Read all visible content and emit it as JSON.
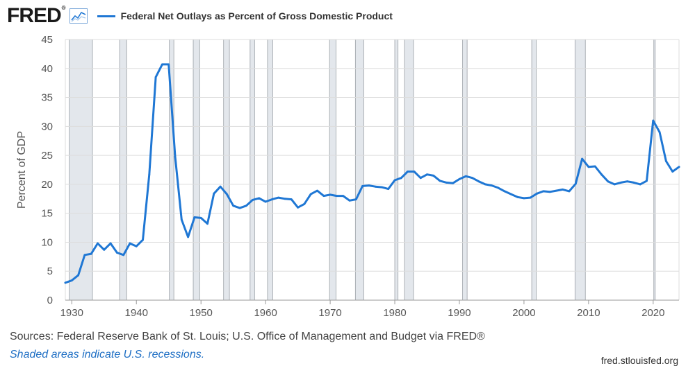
{
  "header": {
    "logo_text": "FRED",
    "logo_mark": "®",
    "icon": "line-chart-icon",
    "legend_label": "Federal Net Outlays as Percent of Gross Domestic Product"
  },
  "colors": {
    "series": "#1f77d4",
    "recession": "#e3e7ec",
    "grid": "#dddddd",
    "axis_text": "#555555"
  },
  "chart_data": {
    "type": "line",
    "title": "Federal Net Outlays as Percent of Gross Domestic Product",
    "xlabel": "",
    "ylabel": "Percent of GDP",
    "xlim": [
      1929,
      2024
    ],
    "ylim": [
      0,
      45
    ],
    "x_ticks": [
      1930,
      1940,
      1950,
      1960,
      1970,
      1980,
      1990,
      2000,
      2010,
      2020
    ],
    "y_ticks": [
      0,
      5,
      10,
      15,
      20,
      25,
      30,
      35,
      40,
      45
    ],
    "recessions": [
      [
        1929.6,
        1933.2
      ],
      [
        1937.4,
        1938.5
      ],
      [
        1945.1,
        1945.8
      ],
      [
        1948.8,
        1949.8
      ],
      [
        1953.5,
        1954.4
      ],
      [
        1957.6,
        1958.3
      ],
      [
        1960.3,
        1961.1
      ],
      [
        1969.9,
        1970.9
      ],
      [
        1973.9,
        1975.2
      ],
      [
        1980.0,
        1980.5
      ],
      [
        1981.5,
        1982.9
      ],
      [
        1990.5,
        1991.2
      ],
      [
        2001.2,
        2001.9
      ],
      [
        2007.9,
        2009.5
      ],
      [
        2020.1,
        2020.3
      ]
    ],
    "series": [
      {
        "name": "Federal Net Outlays as Percent of Gross Domestic Product",
        "x": [
          1929,
          1930,
          1931,
          1932,
          1933,
          1934,
          1935,
          1936,
          1937,
          1938,
          1939,
          1940,
          1941,
          1942,
          1943,
          1944,
          1945,
          1946,
          1947,
          1948,
          1949,
          1950,
          1951,
          1952,
          1953,
          1954,
          1955,
          1956,
          1957,
          1958,
          1959,
          1960,
          1961,
          1962,
          1963,
          1964,
          1965,
          1966,
          1967,
          1968,
          1969,
          1970,
          1971,
          1972,
          1973,
          1974,
          1975,
          1976,
          1977,
          1978,
          1979,
          1980,
          1981,
          1982,
          1983,
          1984,
          1985,
          1986,
          1987,
          1988,
          1989,
          1990,
          1991,
          1992,
          1993,
          1994,
          1995,
          1996,
          1997,
          1998,
          1999,
          2000,
          2001,
          2002,
          2003,
          2004,
          2005,
          2006,
          2007,
          2008,
          2009,
          2010,
          2011,
          2012,
          2013,
          2014,
          2015,
          2016,
          2017,
          2018,
          2019,
          2020,
          2021,
          2022,
          2023,
          2024
        ],
        "values": [
          3.0,
          3.4,
          4.3,
          7.8,
          8.0,
          9.8,
          8.7,
          9.8,
          8.2,
          7.8,
          9.8,
          9.3,
          10.4,
          21.7,
          38.5,
          40.7,
          40.7,
          24.8,
          13.9,
          10.9,
          14.3,
          14.2,
          13.2,
          18.4,
          19.6,
          18.3,
          16.3,
          15.9,
          16.3,
          17.3,
          17.6,
          17.0,
          17.4,
          17.7,
          17.5,
          17.4,
          16.0,
          16.6,
          18.3,
          18.9,
          18.0,
          18.2,
          18.0,
          18.0,
          17.2,
          17.4,
          19.7,
          19.8,
          19.6,
          19.5,
          19.2,
          20.7,
          21.1,
          22.2,
          22.2,
          21.1,
          21.7,
          21.5,
          20.6,
          20.3,
          20.2,
          20.9,
          21.4,
          21.1,
          20.5,
          20.0,
          19.8,
          19.4,
          18.8,
          18.3,
          17.8,
          17.6,
          17.7,
          18.4,
          18.8,
          18.7,
          18.9,
          19.1,
          18.8,
          20.1,
          24.4,
          23.0,
          23.1,
          21.7,
          20.5,
          20.0,
          20.3,
          20.5,
          20.3,
          20.0,
          20.6,
          31.0,
          29.0,
          24.0,
          22.2,
          23.0
        ]
      }
    ]
  },
  "footer": {
    "source": "Sources: Federal Reserve Bank of St. Louis; U.S. Office of Management and Budget via FRED®",
    "shaded": "Shaded areas indicate U.S. recessions.",
    "url": "fred.stlouisfed.org"
  }
}
